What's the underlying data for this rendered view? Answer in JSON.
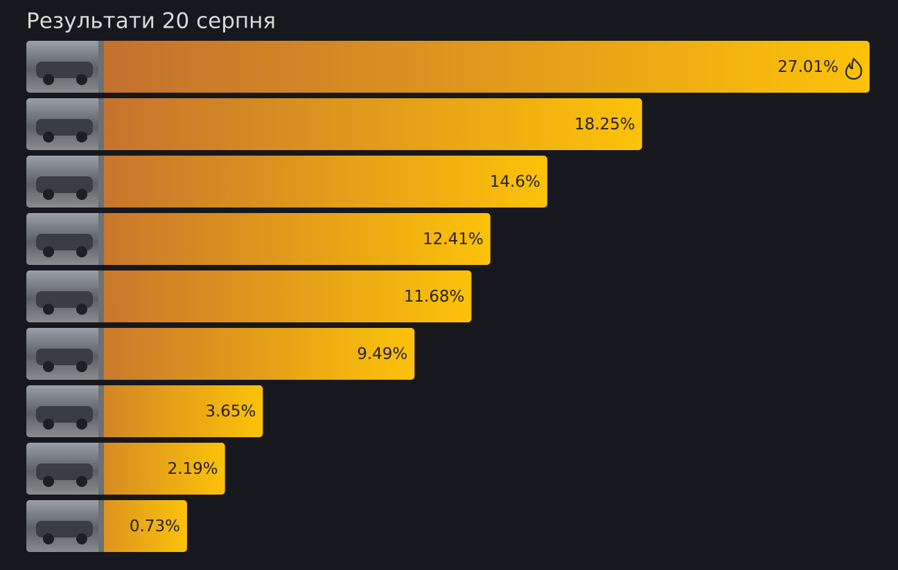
{
  "chart_data": {
    "type": "bar",
    "orientation": "horizontal",
    "title": "Результати 20 серпня",
    "values": [
      27.01,
      18.25,
      14.6,
      12.41,
      11.68,
      9.49,
      3.65,
      2.19,
      0.73
    ],
    "value_labels": [
      "27.01%",
      "18.25%",
      "14.6%",
      "12.41%",
      "11.68%",
      "9.49%",
      "3.65%",
      "2.19%",
      "0.73%"
    ],
    "colors": [
      "#c4712f",
      "#fcc209"
    ]
  }
}
